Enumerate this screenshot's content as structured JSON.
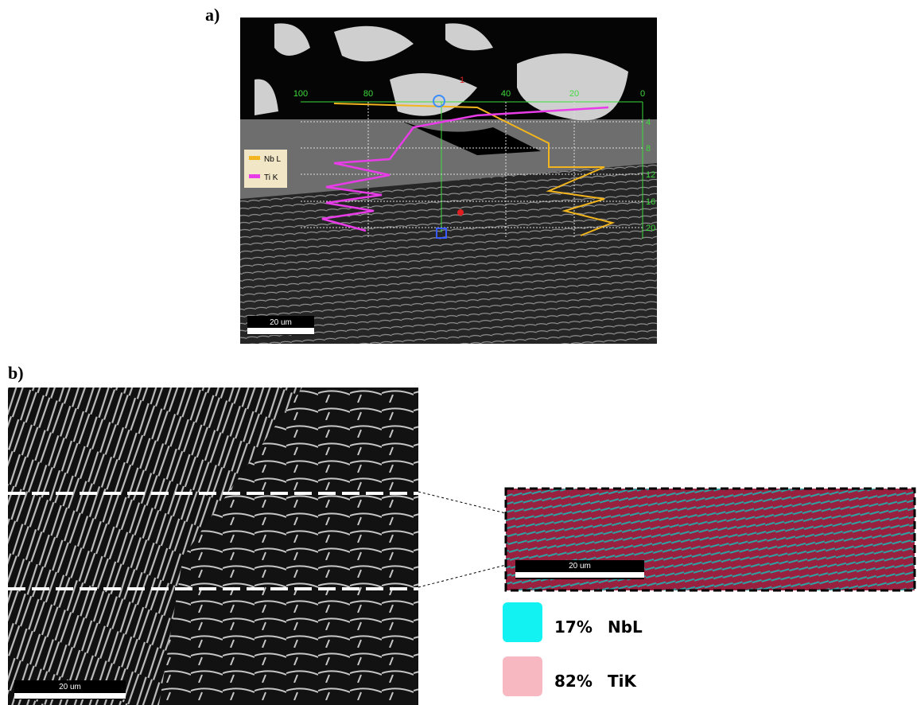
{
  "panel_a": {
    "label": "a)",
    "marker": "1",
    "top_ticks": [
      "100",
      "80",
      "40",
      "20",
      "0"
    ],
    "right_ticks": [
      "4",
      "8",
      "12",
      "16",
      "20"
    ],
    "legend": [
      "Nb L",
      "Ti K"
    ],
    "scale_bar": "20 um"
  },
  "panel_b": {
    "label": "b)",
    "scale_bar": "20 um",
    "inset_scale_bar": "20 um",
    "legend": [
      {
        "percent": "17%",
        "element": "NbL"
      },
      {
        "percent": "82%",
        "element": "TiK"
      }
    ]
  }
}
